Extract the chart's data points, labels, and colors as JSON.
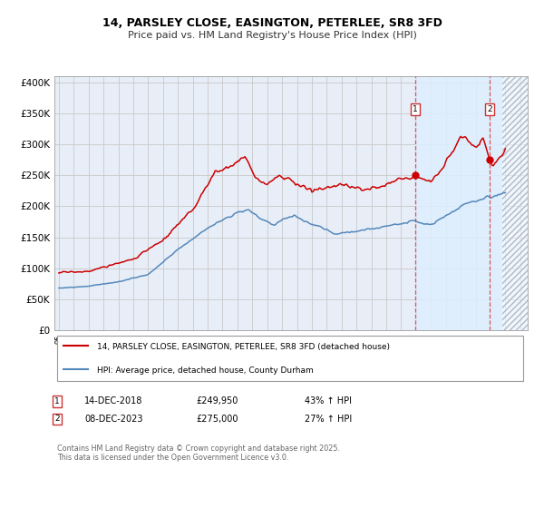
{
  "title": "14, PARSLEY CLOSE, EASINGTON, PETERLEE, SR8 3FD",
  "subtitle": "Price paid vs. HM Land Registry's House Price Index (HPI)",
  "red_label": "14, PARSLEY CLOSE, EASINGTON, PETERLEE, SR8 3FD (detached house)",
  "blue_label": "HPI: Average price, detached house, County Durham",
  "point1_date": "14-DEC-2018",
  "point1_price": 249950,
  "point1_pct": "43% ↑ HPI",
  "point2_date": "08-DEC-2023",
  "point2_price": 275000,
  "point2_pct": "27% ↑ HPI",
  "footer": "Contains HM Land Registry data © Crown copyright and database right 2025.\nThis data is licensed under the Open Government Licence v3.0.",
  "background_color": "#ffffff",
  "plot_bg_color": "#e8eef8",
  "grid_color": "#c8c8c8",
  "red_color": "#cc0000",
  "blue_color": "#5588bb",
  "ylim": [
    0,
    410000
  ],
  "yticks": [
    0,
    50000,
    100000,
    150000,
    200000,
    250000,
    300000,
    350000,
    400000
  ],
  "xlim_start": 1994.7,
  "xlim_end": 2026.5,
  "point1_x": 2018.96,
  "point2_x": 2023.94,
  "future_start": 2024.8,
  "highlight_start": 2018.96,
  "highlight_end": 2024.8
}
